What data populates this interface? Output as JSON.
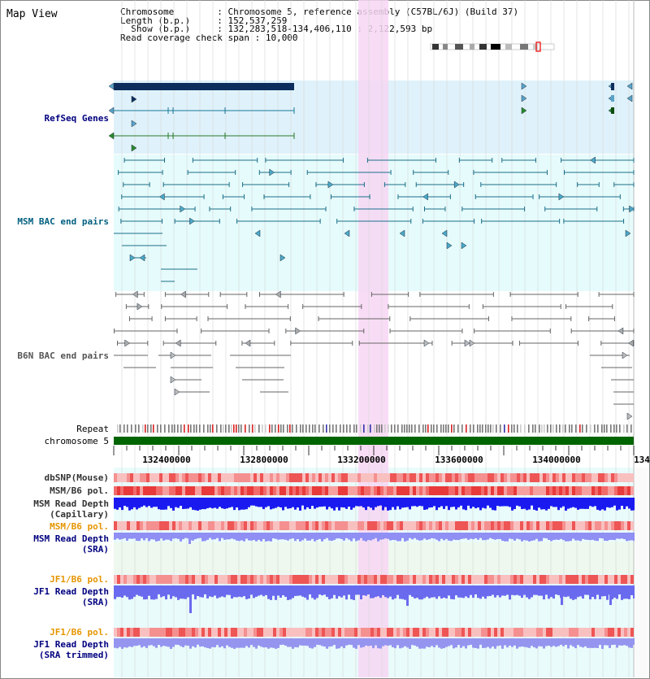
{
  "title": "Map View",
  "info": {
    "chromosome_key": "Chromosome        ",
    "chromosome_val": ": Chromosome 5, reference assembly (C57BL/6J) (Build 37)",
    "length_key": "Length (b.p.)     ",
    "length_val": ": 152,537,259",
    "show_key": "  Show (b.p.)     ",
    "show_val": ": 132,283,518-134,406,110 : 2,122,593 bp",
    "span_key": "Read coverage check span",
    "span_val": " : 10,000"
  },
  "tracks": {
    "refseq": "RefSeq Genes",
    "msm_bac": "MSM BAC end pairs",
    "b6n_bac": "B6N BAC end pairs",
    "repeat": "Repeat",
    "chromosome": "chromosome 5",
    "dbsnp": "dbSNP(Mouse)",
    "msm_pol": "MSM/B6 pol.",
    "msm_depth_cap_1": "MSM Read Depth",
    "msm_depth_cap_2": "(Capillary)",
    "msm_pol2": "MSM/B6 pol.",
    "msm_depth_sra_1": "MSM Read Depth",
    "msm_depth_sra_2": "(SRA)",
    "jf1_pol": "JF1/B6 pol.",
    "jf1_depth_sra_1": "JF1 Read Depth",
    "jf1_depth_sra_2": "(SRA)",
    "jf1_pol2": "JF1/B6 pol.",
    "jf1_depth_trim_1": "JF1 Read Depth",
    "jf1_depth_trim_2": "(SRA trimmed)"
  },
  "axis_ticks": [
    "132400000",
    "132800000",
    "133200000",
    "133600000",
    "134000000",
    "134"
  ],
  "colors": {
    "refseq_bg": "#dff2fb",
    "msm_bg": "#e6fbfb",
    "highlight": "#f7d6f3",
    "track_label_navy": "#00007f",
    "track_label_teal": "#005f7f",
    "track_label_orange": "#e69500",
    "chrom_green": "#006400"
  }
}
